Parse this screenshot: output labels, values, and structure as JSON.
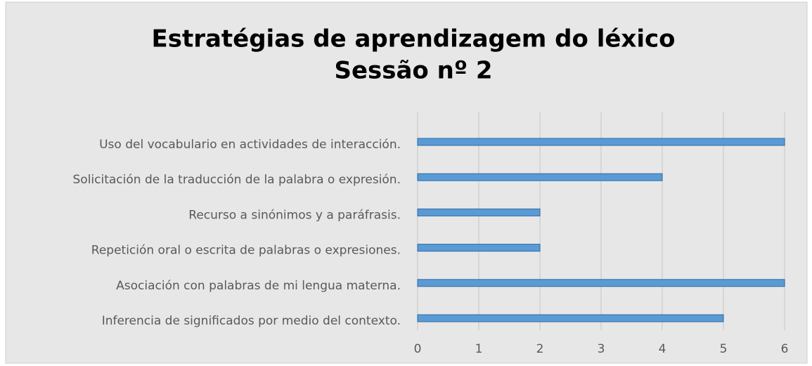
{
  "chart_data": {
    "type": "bar",
    "orientation": "horizontal",
    "title": "Estratégias de aprendizagem do léxico",
    "subtitle": "Sessão nº 2",
    "categories": [
      "Uso del vocabulario en actividades de interacción.",
      "Solicitación de la traducción de la palabra o expresión.",
      "Recurso a sinónimos y a paráfrasis.",
      "Repetición oral o escrita de palabras o expresiones.",
      "Asociación con palabras de mi lengua materna.",
      "Inferencia de significados por medio del contexto."
    ],
    "values": [
      6,
      4,
      2,
      2,
      6,
      5
    ],
    "color": "#5b9bd5",
    "xlim": [
      0,
      6
    ],
    "xticks": [
      0,
      1,
      2,
      3,
      4,
      5,
      6
    ],
    "grid": true
  }
}
